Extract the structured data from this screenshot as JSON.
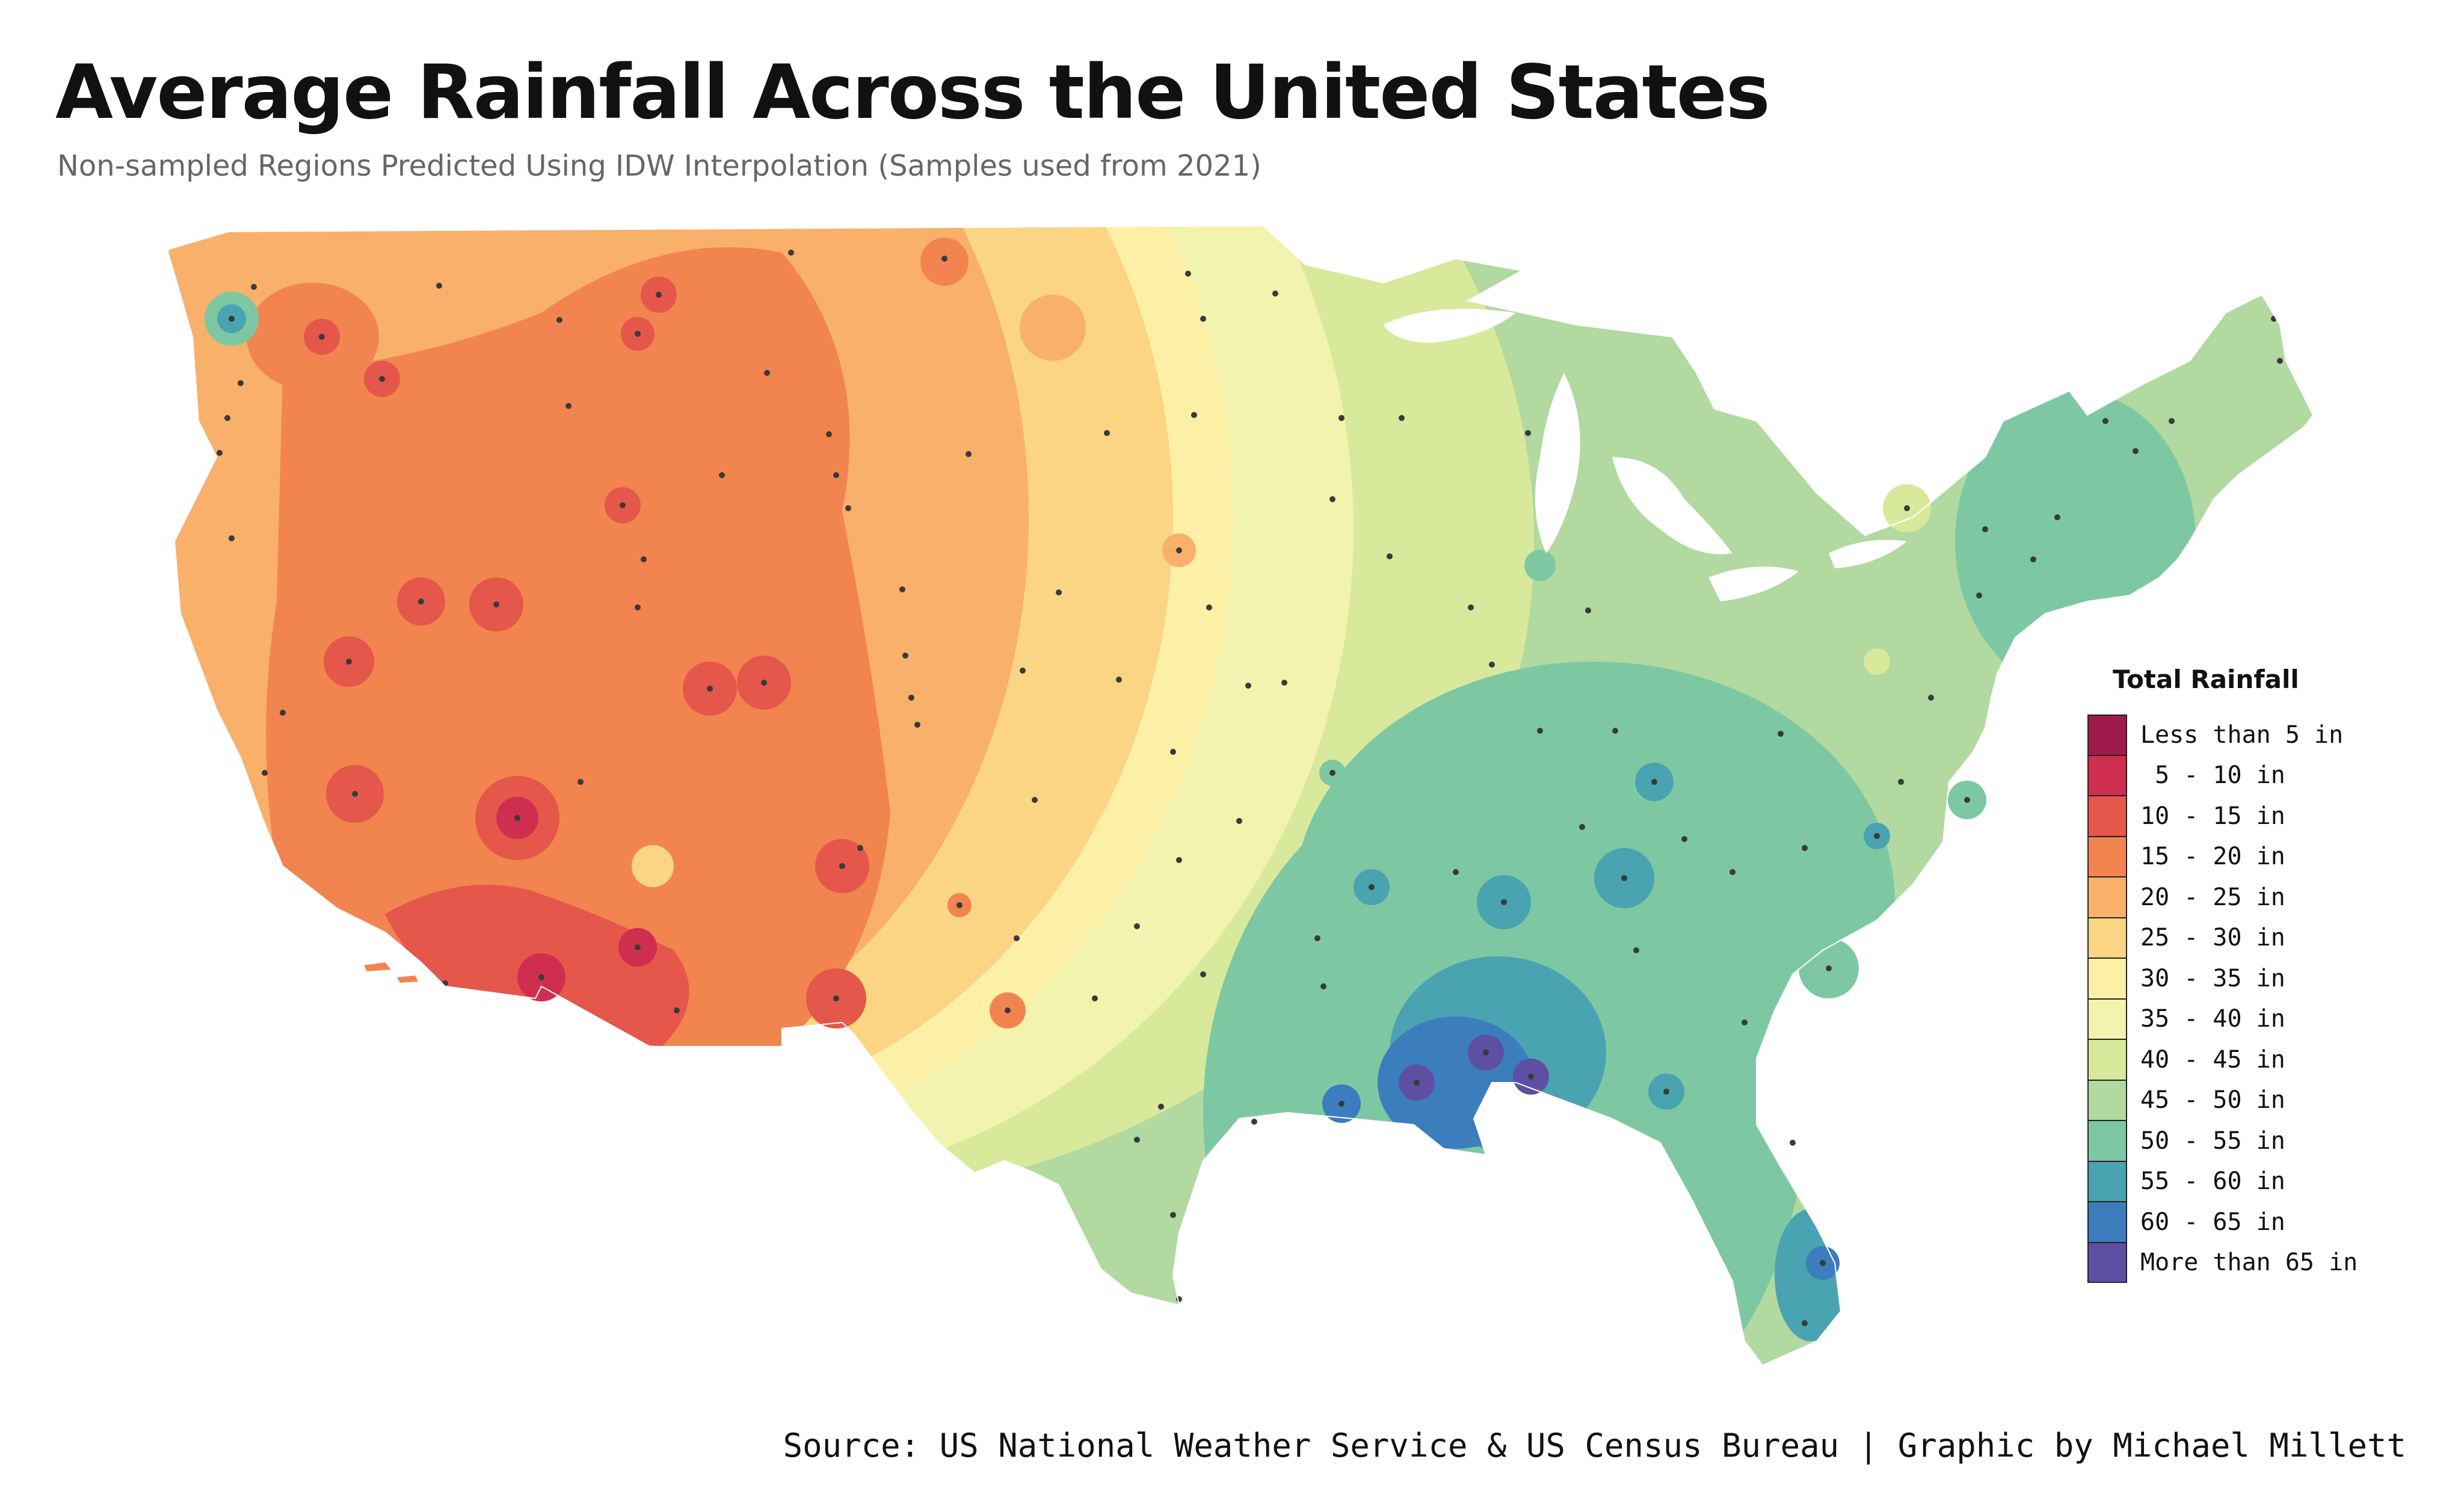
{
  "title": "Average Rainfall Across the United States",
  "subtitle": "Non-sampled Regions Predicted Using IDW Interpolation (Samples used from 2021)",
  "legend": {
    "title": "Total Rainfall",
    "items": [
      {
        "label": "Less than 5 in",
        "color": "#9e1a4a"
      },
      {
        "label": " 5 - 10 in",
        "color": "#cf2e4f"
      },
      {
        "label": "10 - 15 in",
        "color": "#e4574a"
      },
      {
        "label": "15 - 20 in",
        "color": "#f2844f"
      },
      {
        "label": "20 - 25 in",
        "color": "#f8b06b"
      },
      {
        "label": "25 - 30 in",
        "color": "#fbd583"
      },
      {
        "label": "30 - 35 in",
        "color": "#fcf0a6"
      },
      {
        "label": "35 - 40 in",
        "color": "#f1f3af"
      },
      {
        "label": "40 - 45 in",
        "color": "#d9e99b"
      },
      {
        "label": "45 - 50 in",
        "color": "#b1d9a0"
      },
      {
        "label": "50 - 55 in",
        "color": "#7dc8a2"
      },
      {
        "label": "55 - 60 in",
        "color": "#4aa3b0"
      },
      {
        "label": "60 - 65 in",
        "color": "#3b7dbd"
      },
      {
        "label": "More than 65 in",
        "color": "#5e4fa2"
      }
    ]
  },
  "source": "Source: US National Weather Service & US Census Bureau | Graphic by Michael Millett"
}
